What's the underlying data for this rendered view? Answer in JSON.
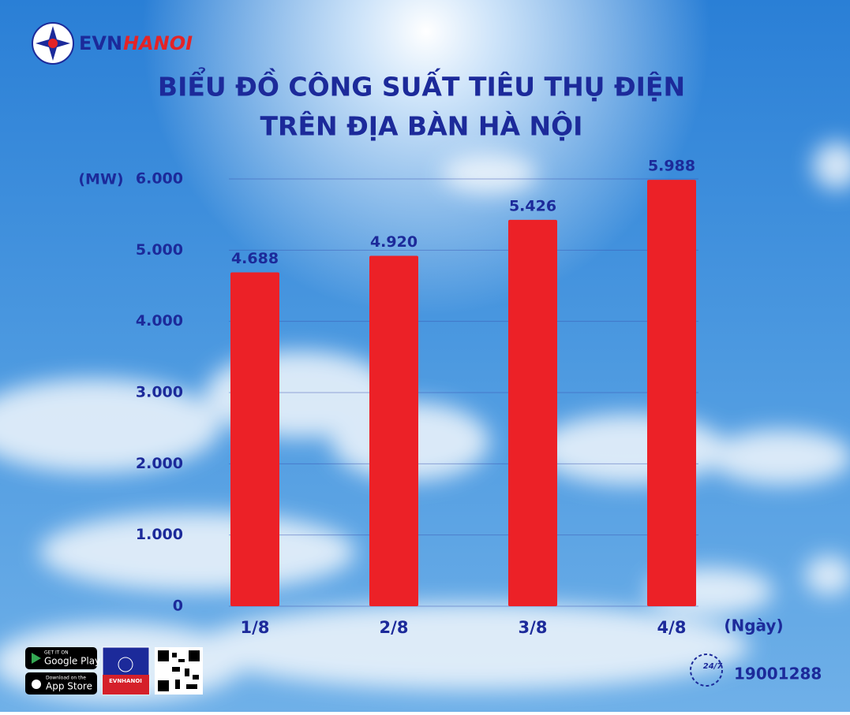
{
  "chart_data": {
    "type": "bar",
    "title": [
      "BIỂU ĐỒ CÔNG SUẤT TIÊU THỤ ĐIỆN",
      "TRÊN ĐỊA BÀN HÀ NỘI"
    ],
    "y_label": "(MW)",
    "x_label": "(Ngày)",
    "categories": [
      "1/8",
      "2/8",
      "3/8",
      "4/8"
    ],
    "values": [
      4688,
      4920,
      5426,
      5988
    ],
    "value_labels": [
      "4.688",
      "4.920",
      "5.426",
      "5.988"
    ],
    "color": "#ec2127",
    "ylim": [
      0,
      6000
    ],
    "yticks": [
      0,
      {
        "value": 1000,
        "label": "1.000"
      },
      {
        "value": 2000,
        "label": "2.000"
      },
      {
        "value": 3000,
        "label": "3.000"
      },
      {
        "value": 4000,
        "label": "4.000"
      },
      {
        "value": 5000,
        "label": "5.000"
      },
      {
        "value": 6000,
        "label": "6.000"
      }
    ],
    "grid": true
  },
  "header": {
    "logo_evn": "EVN",
    "logo_hanoi": "HANOI"
  },
  "footer": {
    "google_small": "GET IT ON",
    "google": "Google Play",
    "apple_small": "Download on the",
    "apple": "App Store",
    "app_icon": "EVNHANOI",
    "hotline_badge": "24/7",
    "hotline": "19001288"
  }
}
